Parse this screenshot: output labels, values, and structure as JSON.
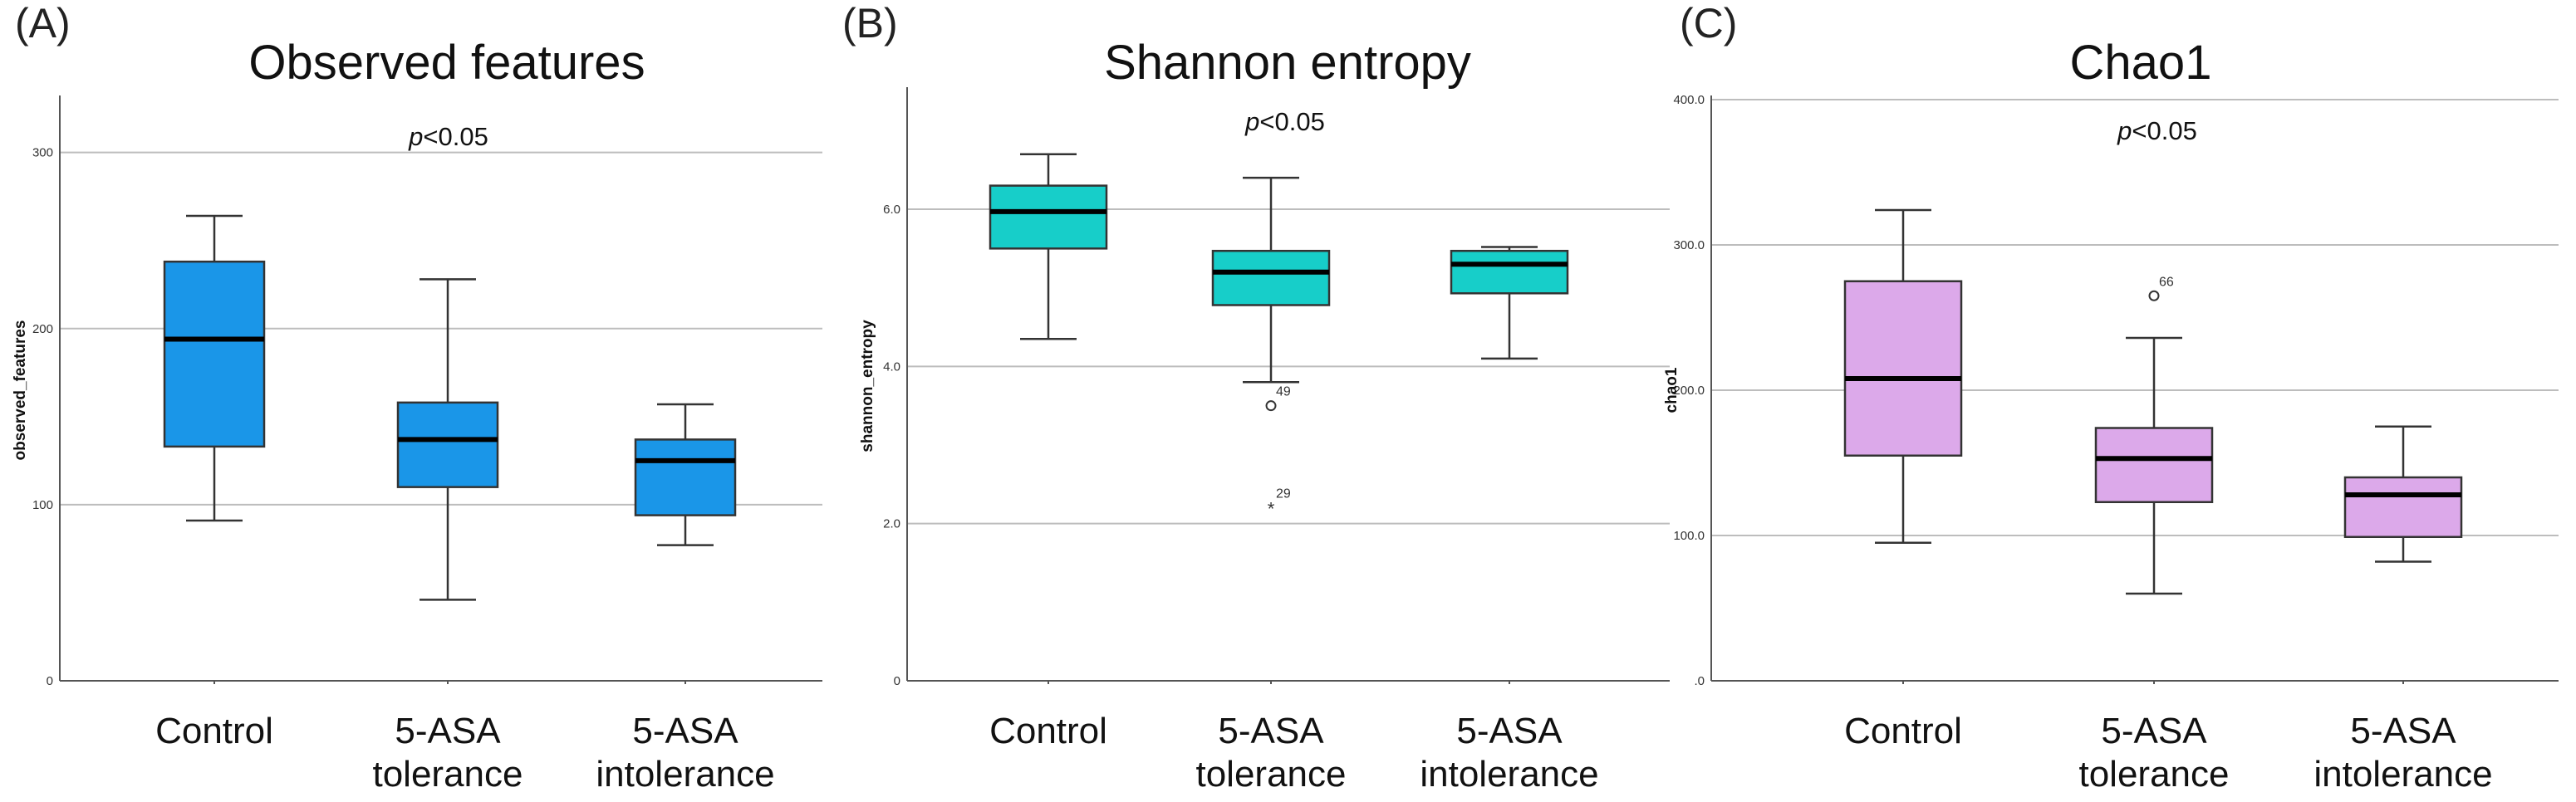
{
  "chart_data": [
    {
      "type": "box",
      "panel_label": "(A)",
      "title": "Observed features",
      "annotation": {
        "p_prefix": "p",
        "p_rest": "<0.05"
      },
      "ylabel": "observed_features",
      "ylim": [
        0,
        330
      ],
      "yticks": [
        0,
        100,
        200,
        300
      ],
      "ytick_labels": [
        "0",
        "100",
        "200",
        "300"
      ],
      "box_color": "#1a96e8",
      "categories": [
        {
          "lines": [
            "Control"
          ],
          "min": 91,
          "q1": 133,
          "median": 194,
          "q3": 238,
          "max": 264,
          "outliers": []
        },
        {
          "lines": [
            "5-ASA",
            "tolerance"
          ],
          "min": 46,
          "q1": 110,
          "median": 137,
          "q3": 158,
          "max": 228,
          "outliers": []
        },
        {
          "lines": [
            "5-ASA",
            "intolerance"
          ],
          "min": 77,
          "q1": 94,
          "median": 125,
          "q3": 137,
          "max": 157,
          "outliers": []
        }
      ]
    },
    {
      "type": "box",
      "panel_label": "(B)",
      "title": "Shannon entropy",
      "annotation": {
        "p_prefix": "p",
        "p_rest": "<0.05"
      },
      "ylabel": "shannon_entropy",
      "ylim": [
        0,
        7.5
      ],
      "yticks": [
        0,
        2,
        4,
        6
      ],
      "ytick_labels": [
        "0",
        "2.0",
        "4.0",
        "6.0"
      ],
      "box_color": "#17cec9",
      "categories": [
        {
          "lines": [
            "Control"
          ],
          "min": 4.35,
          "q1": 5.5,
          "median": 5.97,
          "q3": 6.3,
          "max": 6.7,
          "outliers": []
        },
        {
          "lines": [
            "5-ASA",
            "tolerance"
          ],
          "min": 3.8,
          "q1": 4.78,
          "median": 5.2,
          "q3": 5.47,
          "max": 6.4,
          "outliers": [
            {
              "value": 3.5,
              "symbol": "o",
              "label": "49"
            },
            {
              "value": 2.2,
              "symbol": "*",
              "label": "29"
            }
          ]
        },
        {
          "lines": [
            "5-ASA",
            "intolerance"
          ],
          "min": 4.1,
          "q1": 4.93,
          "median": 5.3,
          "q3": 5.47,
          "max": 5.52,
          "outliers": []
        }
      ]
    },
    {
      "type": "box",
      "panel_label": "(C)",
      "title": "Chao1",
      "annotation": {
        "p_prefix": "p",
        "p_rest": "<0.05"
      },
      "ylabel": "chao1",
      "ylim": [
        0,
        400
      ],
      "yticks": [
        0,
        100,
        200,
        300,
        400
      ],
      "ytick_labels": [
        ".0",
        "100.0",
        "200.0",
        "300.0",
        "400.0"
      ],
      "box_color": "#dca9ea",
      "categories": [
        {
          "lines": [
            "Control"
          ],
          "min": 95,
          "q1": 155,
          "median": 208,
          "q3": 275,
          "max": 324,
          "outliers": []
        },
        {
          "lines": [
            "5-ASA",
            "tolerance"
          ],
          "min": 60,
          "q1": 123,
          "median": 153,
          "q3": 174,
          "max": 236,
          "outliers": [
            {
              "value": 265,
              "symbol": "o",
              "label": "66"
            }
          ]
        },
        {
          "lines": [
            "5-ASA",
            "intolerance"
          ],
          "min": 82,
          "q1": 99,
          "median": 128,
          "q3": 140,
          "max": 175,
          "outliers": []
        }
      ]
    }
  ]
}
